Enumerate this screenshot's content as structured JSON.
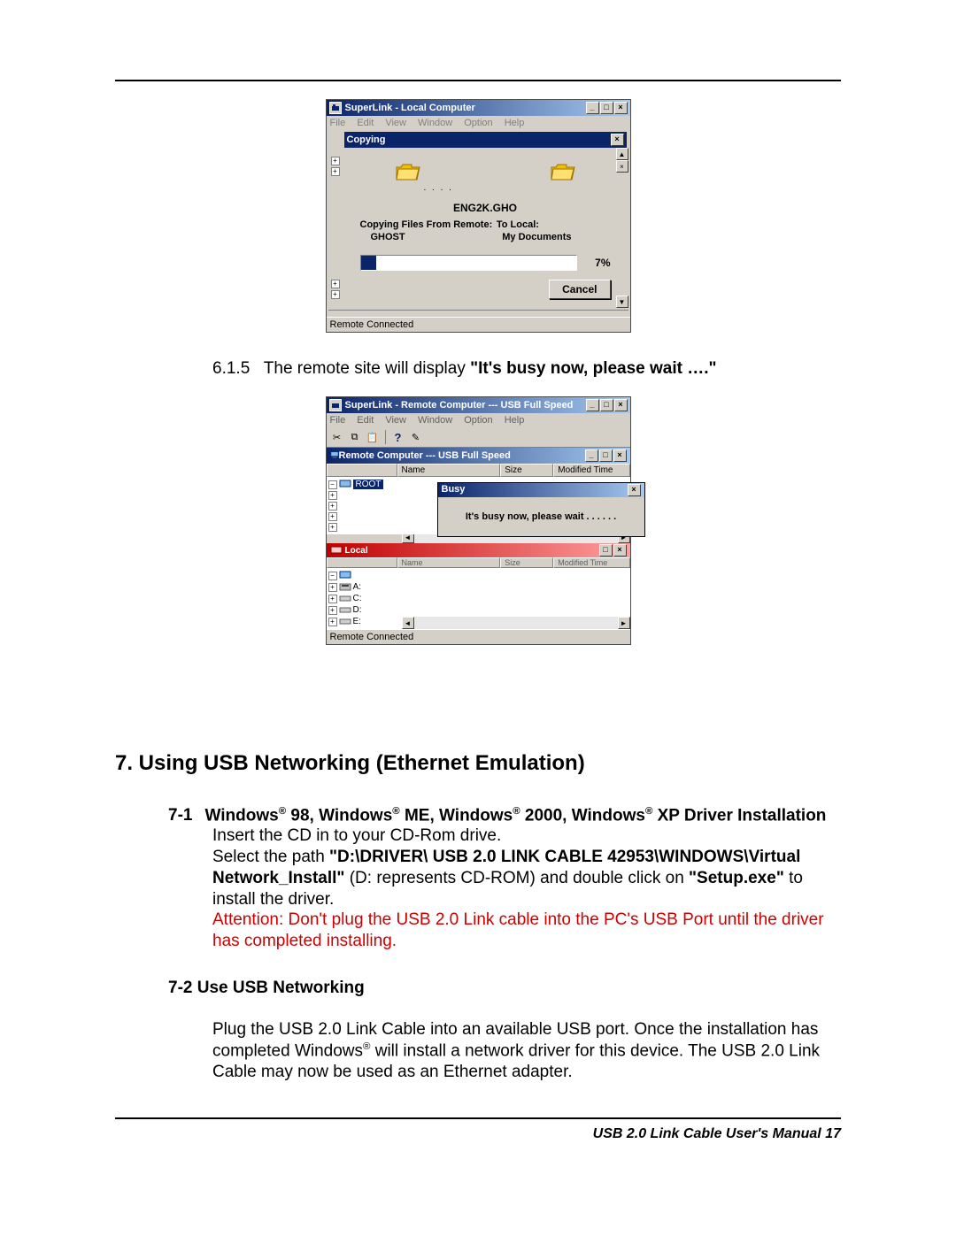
{
  "shot1": {
    "title": "SuperLink - Local Computer",
    "menus": [
      "File",
      "Edit",
      "View",
      "Window",
      "Option",
      "Help"
    ],
    "dlg_title": "Copying",
    "filename": "ENG2K.GHO",
    "from_label": "Copying Files From Remote:",
    "to_label": "To Local:",
    "from_val": "GHOST",
    "to_val": "My Documents",
    "pct_text": "7%",
    "progress_pct": 7,
    "cancel": "Cancel",
    "status": "Remote Connected",
    "progress_bg": "#ffffff",
    "progress_fill": "#0a246a",
    "titlebar_from": "#0a246a",
    "titlebar_to": "#a6caf0",
    "win_bg": "#d4d0c8"
  },
  "sec615": {
    "num": "6.1.5",
    "text_plain": "The remote site will display ",
    "text_bold": "\"It's busy now, please wait ….\""
  },
  "shot2": {
    "title": "SuperLink - Remote Computer --- USB Full Speed",
    "menus": [
      "File",
      "Edit",
      "View",
      "Window",
      "Option",
      "Help"
    ],
    "pane_title": "Remote Computer --- USB Full Speed",
    "cols": {
      "name1": "",
      "name2": "Name",
      "size": "Size",
      "mod": "Modified Time"
    },
    "root_label": "ROOT",
    "busy_title": "Busy",
    "busy_text": "It's busy now, please wait . . . . . .",
    "lower_title": "Local",
    "lower_cols": [
      "",
      "Name",
      "Size",
      "Modified Time"
    ],
    "drives": [
      "A:",
      "C:",
      "D:",
      "E:"
    ],
    "status": "Remote Connected"
  },
  "section7": {
    "heading": "7.  Using USB Networking (Ethernet Emulation)",
    "sub1_num": "7-1",
    "sub1_title_parts": [
      "Windows",
      "®",
      " 98, Windows",
      "®",
      " ME, Windows",
      "®",
      " 2000, Windows",
      "®",
      " XP Driver Installation"
    ],
    "line1": "Insert the CD in to your CD-Rom drive.",
    "line2_pre": "Select the path ",
    "line2_bold": "\"D:\\DRIVER\\ USB 2.0 LINK CABLE 42953\\WINDOWS\\Virtual Network_Install\"",
    "line2_mid": " (D: represents CD-ROM) and double click on ",
    "line2_bold2": "\"Setup.exe\"",
    "line2_post": " to install the driver.",
    "warn": "Attention: Don't plug the USB 2.0 Link cable into the PC's USB Port until the driver has completed installing.",
    "sub2": "7-2 Use USB Networking",
    "body2_pre": "Plug the USB 2.0 Link Cable into an available USB port. Once the installation has completed Windows",
    "body2_sup": "®",
    "body2_post": " will install a network driver for this device.  The USB 2.0 Link Cable may now be used as an Ethernet adapter."
  },
  "footer": "USB 2.0 Link Cable User's Manual 17",
  "colors": {
    "warn": "#d00000",
    "text": "#000000"
  }
}
